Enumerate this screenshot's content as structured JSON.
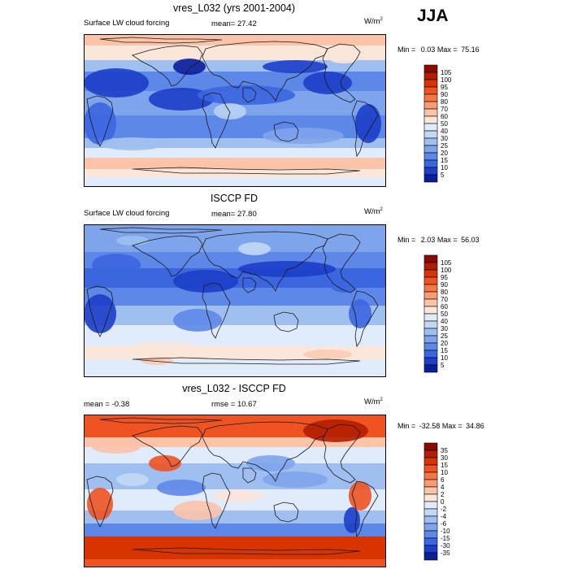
{
  "season": "JJA",
  "panels": [
    {
      "title": "vres_L032 (yrs 2001-2004)",
      "left_label": "Surface LW cloud forcing",
      "mean_label": "mean=",
      "mean_value": "27.42",
      "units": "W/m",
      "units_sup": "2",
      "min_label": "Min =",
      "min_value": "0.03",
      "max_label": "Max =",
      "max_value": "75.16"
    },
    {
      "title": "ISCCP FD",
      "left_label": "Surface LW cloud forcing",
      "mean_label": "mean=",
      "mean_value": "27.80",
      "units": "W/m",
      "units_sup": "2",
      "min_label": "Min =",
      "min_value": "2.03",
      "max_label": "Max =",
      "max_value": "56.03"
    },
    {
      "title": "vres_L032 - ISCCP FD",
      "left_label": "mean =",
      "left_value": "-0.38",
      "mean_label": "rmse =",
      "mean_value": "10.67",
      "units": "W/m",
      "units_sup": "2",
      "min_label": "Min =",
      "min_value": "-32.58",
      "max_label": "Max =",
      "max_value": "34.86"
    }
  ],
  "chart_data": [
    {
      "type": "heatmap",
      "title": "vres_L032 (yrs 2001-2004)",
      "variable": "Surface LW cloud forcing",
      "units": "W/m2",
      "mean": 27.42,
      "min": 0.03,
      "max": 75.16,
      "colorbar_levels": [
        "105",
        "100",
        "95",
        "90",
        "80",
        "70",
        "60",
        "50",
        "40",
        "30",
        "25",
        "20",
        "15",
        "10",
        "5"
      ],
      "colorbar_colors": [
        "#8b0a00",
        "#b21e00",
        "#d83400",
        "#ee5321",
        "#f57747",
        "#f99b74",
        "#fbc3a8",
        "#fbe6da",
        "#e0ecfb",
        "#c2d8f5",
        "#9fbff0",
        "#7ea4ec",
        "#5d88e8",
        "#3b66e0",
        "#1d3ec9",
        "#0a1e9a"
      ]
    },
    {
      "type": "heatmap",
      "title": "ISCCP FD",
      "variable": "Surface LW cloud forcing",
      "units": "W/m2",
      "mean": 27.8,
      "min": 2.03,
      "max": 56.03,
      "colorbar_levels": [
        "105",
        "100",
        "95",
        "90",
        "80",
        "70",
        "60",
        "50",
        "40",
        "30",
        "25",
        "20",
        "15",
        "10",
        "5"
      ],
      "colorbar_colors": [
        "#8b0a00",
        "#b21e00",
        "#d83400",
        "#ee5321",
        "#f57747",
        "#f99b74",
        "#fbc3a8",
        "#fbe6da",
        "#e0ecfb",
        "#c2d8f5",
        "#9fbff0",
        "#7ea4ec",
        "#5d88e8",
        "#3b66e0",
        "#1d3ec9",
        "#0a1e9a"
      ]
    },
    {
      "type": "heatmap",
      "title": "vres_L032 - ISCCP FD",
      "units": "W/m2",
      "mean": -0.38,
      "rmse": 10.67,
      "min": -32.58,
      "max": 34.86,
      "colorbar_levels": [
        "35",
        "30",
        "15",
        "10",
        "6",
        "4",
        "2",
        "0",
        "-2",
        "-4",
        "-6",
        "-10",
        "-15",
        "-30",
        "-35"
      ],
      "colorbar_colors": [
        "#8b0a00",
        "#b21e00",
        "#d83400",
        "#ee5321",
        "#f57747",
        "#f99b74",
        "#fbc3a8",
        "#fbe6da",
        "#e0ecfb",
        "#c2d8f5",
        "#9fbff0",
        "#7ea4ec",
        "#5d88e8",
        "#3b66e0",
        "#1d3ec9",
        "#0a1e9a"
      ]
    }
  ]
}
